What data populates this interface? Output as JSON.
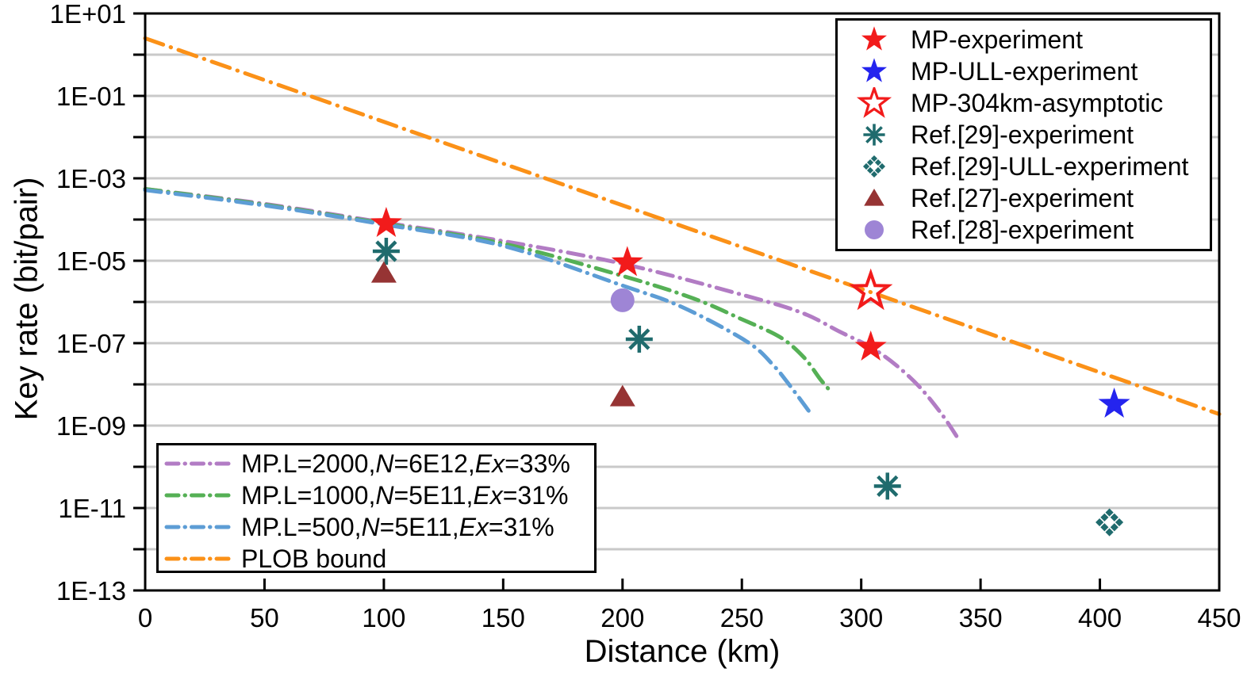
{
  "chart_data": {
    "type": "line+scatter",
    "title": "",
    "xlabel": "Distance (km)",
    "ylabel": "Key rate (bit/pair)",
    "x_axis": {
      "min": 0,
      "max": 450,
      "ticks": [
        0,
        50,
        100,
        150,
        200,
        250,
        300,
        350,
        400,
        450
      ]
    },
    "y_axis": {
      "scale": "log",
      "min": 1e-13,
      "max": 10,
      "labeled_ticks": [
        {
          "exp": 1,
          "label": "1E+01"
        },
        {
          "exp": -1,
          "label": "1E-01"
        },
        {
          "exp": -3,
          "label": "1E-03"
        },
        {
          "exp": -5,
          "label": "1E-05"
        },
        {
          "exp": -7,
          "label": "1E-07"
        },
        {
          "exp": -9,
          "label": "1E-09"
        },
        {
          "exp": -11,
          "label": "1E-11"
        },
        {
          "exp": -13,
          "label": "1E-13"
        }
      ]
    },
    "grid": {
      "horizontal": true,
      "vertical": false,
      "color": "#c9c9c9"
    },
    "scatter_series": [
      {
        "name": "MP-experiment",
        "marker": "star-filled",
        "color": "#f21b1b",
        "points": [
          [
            101,
            8e-05
          ],
          [
            202,
            9e-06
          ],
          [
            304,
            8e-08
          ]
        ]
      },
      {
        "name": "MP-ULL-experiment",
        "marker": "star-filled",
        "color": "#2424ee",
        "points": [
          [
            406,
            3.3e-09
          ]
        ]
      },
      {
        "name": "MP-304km-asymptotic",
        "marker": "star-open",
        "color": "#f21b1b",
        "points": [
          [
            304,
            1.8e-06
          ]
        ]
      },
      {
        "name": "Ref.[29]-experiment",
        "marker": "asterisk8",
        "color": "#1f6b6d",
        "points": [
          [
            101,
            1.7e-05
          ],
          [
            207,
            1.25e-07
          ],
          [
            311,
            3.4e-11
          ]
        ]
      },
      {
        "name": "Ref.[29]-ULL-experiment",
        "marker": "waffle-diamond",
        "color": "#1f6b6d",
        "points": [
          [
            404,
            4.5e-12
          ]
        ]
      },
      {
        "name": "Ref.[27]-experiment",
        "marker": "triangle-filled",
        "color": "#963434",
        "points": [
          [
            100,
            5e-06
          ],
          [
            200,
            5e-09
          ]
        ]
      },
      {
        "name": "Ref.[28]-experiment",
        "marker": "circle-filled",
        "color": "#9e85d5",
        "points": [
          [
            200,
            1.1e-06
          ]
        ]
      }
    ],
    "curve_series": [
      {
        "name": "MP.L=2000,N=6E12,Ex=33%",
        "color": "#b27cc4",
        "linestyle": "dashdot",
        "label_segments": [
          {
            "t": "MP.L=2000,",
            "i": 0
          },
          {
            "t": "N",
            "i": 1
          },
          {
            "t": "=6E12,",
            "i": 0
          },
          {
            "t": "Ex",
            "i": 1
          },
          {
            "t": "=33%",
            "i": 0
          }
        ],
        "points": [
          [
            0,
            0.00055
          ],
          [
            50,
            0.00024
          ],
          [
            100,
            8.5e-05
          ],
          [
            150,
            3e-05
          ],
          [
            200,
            8.5e-06
          ],
          [
            250,
            1.5e-06
          ],
          [
            275,
            5.5e-07
          ],
          [
            291,
            1.9e-07
          ],
          [
            304,
            8e-08
          ],
          [
            315,
            2.8e-08
          ],
          [
            325,
            8e-09
          ],
          [
            334,
            1.8e-09
          ],
          [
            340,
            5.5e-10
          ]
        ]
      },
      {
        "name": "MP.L=1000,N=5E11,Ex=31%",
        "color": "#55b055",
        "linestyle": "dashdot",
        "label_segments": [
          {
            "t": "MP.L=1000,",
            "i": 0
          },
          {
            "t": "N",
            "i": 1
          },
          {
            "t": "=5E11,",
            "i": 0
          },
          {
            "t": "Ex",
            "i": 1
          },
          {
            "t": "=31%",
            "i": 0
          }
        ],
        "points": [
          [
            0,
            0.00055
          ],
          [
            50,
            0.00023
          ],
          [
            100,
            8e-05
          ],
          [
            150,
            2.6e-05
          ],
          [
            200,
            4.3e-06
          ],
          [
            230,
            1.2e-06
          ],
          [
            250,
            3.8e-07
          ],
          [
            266,
            1.4e-07
          ],
          [
            276,
            4.5e-08
          ],
          [
            283,
            1.3e-08
          ],
          [
            288,
            6e-09
          ]
        ]
      },
      {
        "name": "MP.L=500,N=5E11,Ex=31%",
        "color": "#5d9dd5",
        "linestyle": "dashdot",
        "label_segments": [
          {
            "t": "MP.L=500,",
            "i": 0
          },
          {
            "t": "N",
            "i": 1
          },
          {
            "t": "=5E11,",
            "i": 0
          },
          {
            "t": "Ex",
            "i": 1
          },
          {
            "t": "=31%",
            "i": 0
          }
        ],
        "points": [
          [
            0,
            0.00052
          ],
          [
            50,
            0.00022
          ],
          [
            100,
            7.6e-05
          ],
          [
            150,
            2.3e-05
          ],
          [
            200,
            2.5e-06
          ],
          [
            225,
            7.5e-07
          ],
          [
            252,
            1.1e-07
          ],
          [
            263,
            3e-08
          ],
          [
            271,
            8e-09
          ],
          [
            279,
            1.9e-09
          ]
        ]
      },
      {
        "name": "PLOB bound",
        "color": "#fb9118",
        "linestyle": "dashdot",
        "label_segments": [
          {
            "t": "PLOB bound",
            "i": 0
          }
        ],
        "points": [
          [
            0,
            2.5
          ],
          [
            450,
            1.9e-09
          ]
        ]
      }
    ],
    "legend_markers_position": "top-right",
    "legend_curves_position": "bottom-left"
  }
}
